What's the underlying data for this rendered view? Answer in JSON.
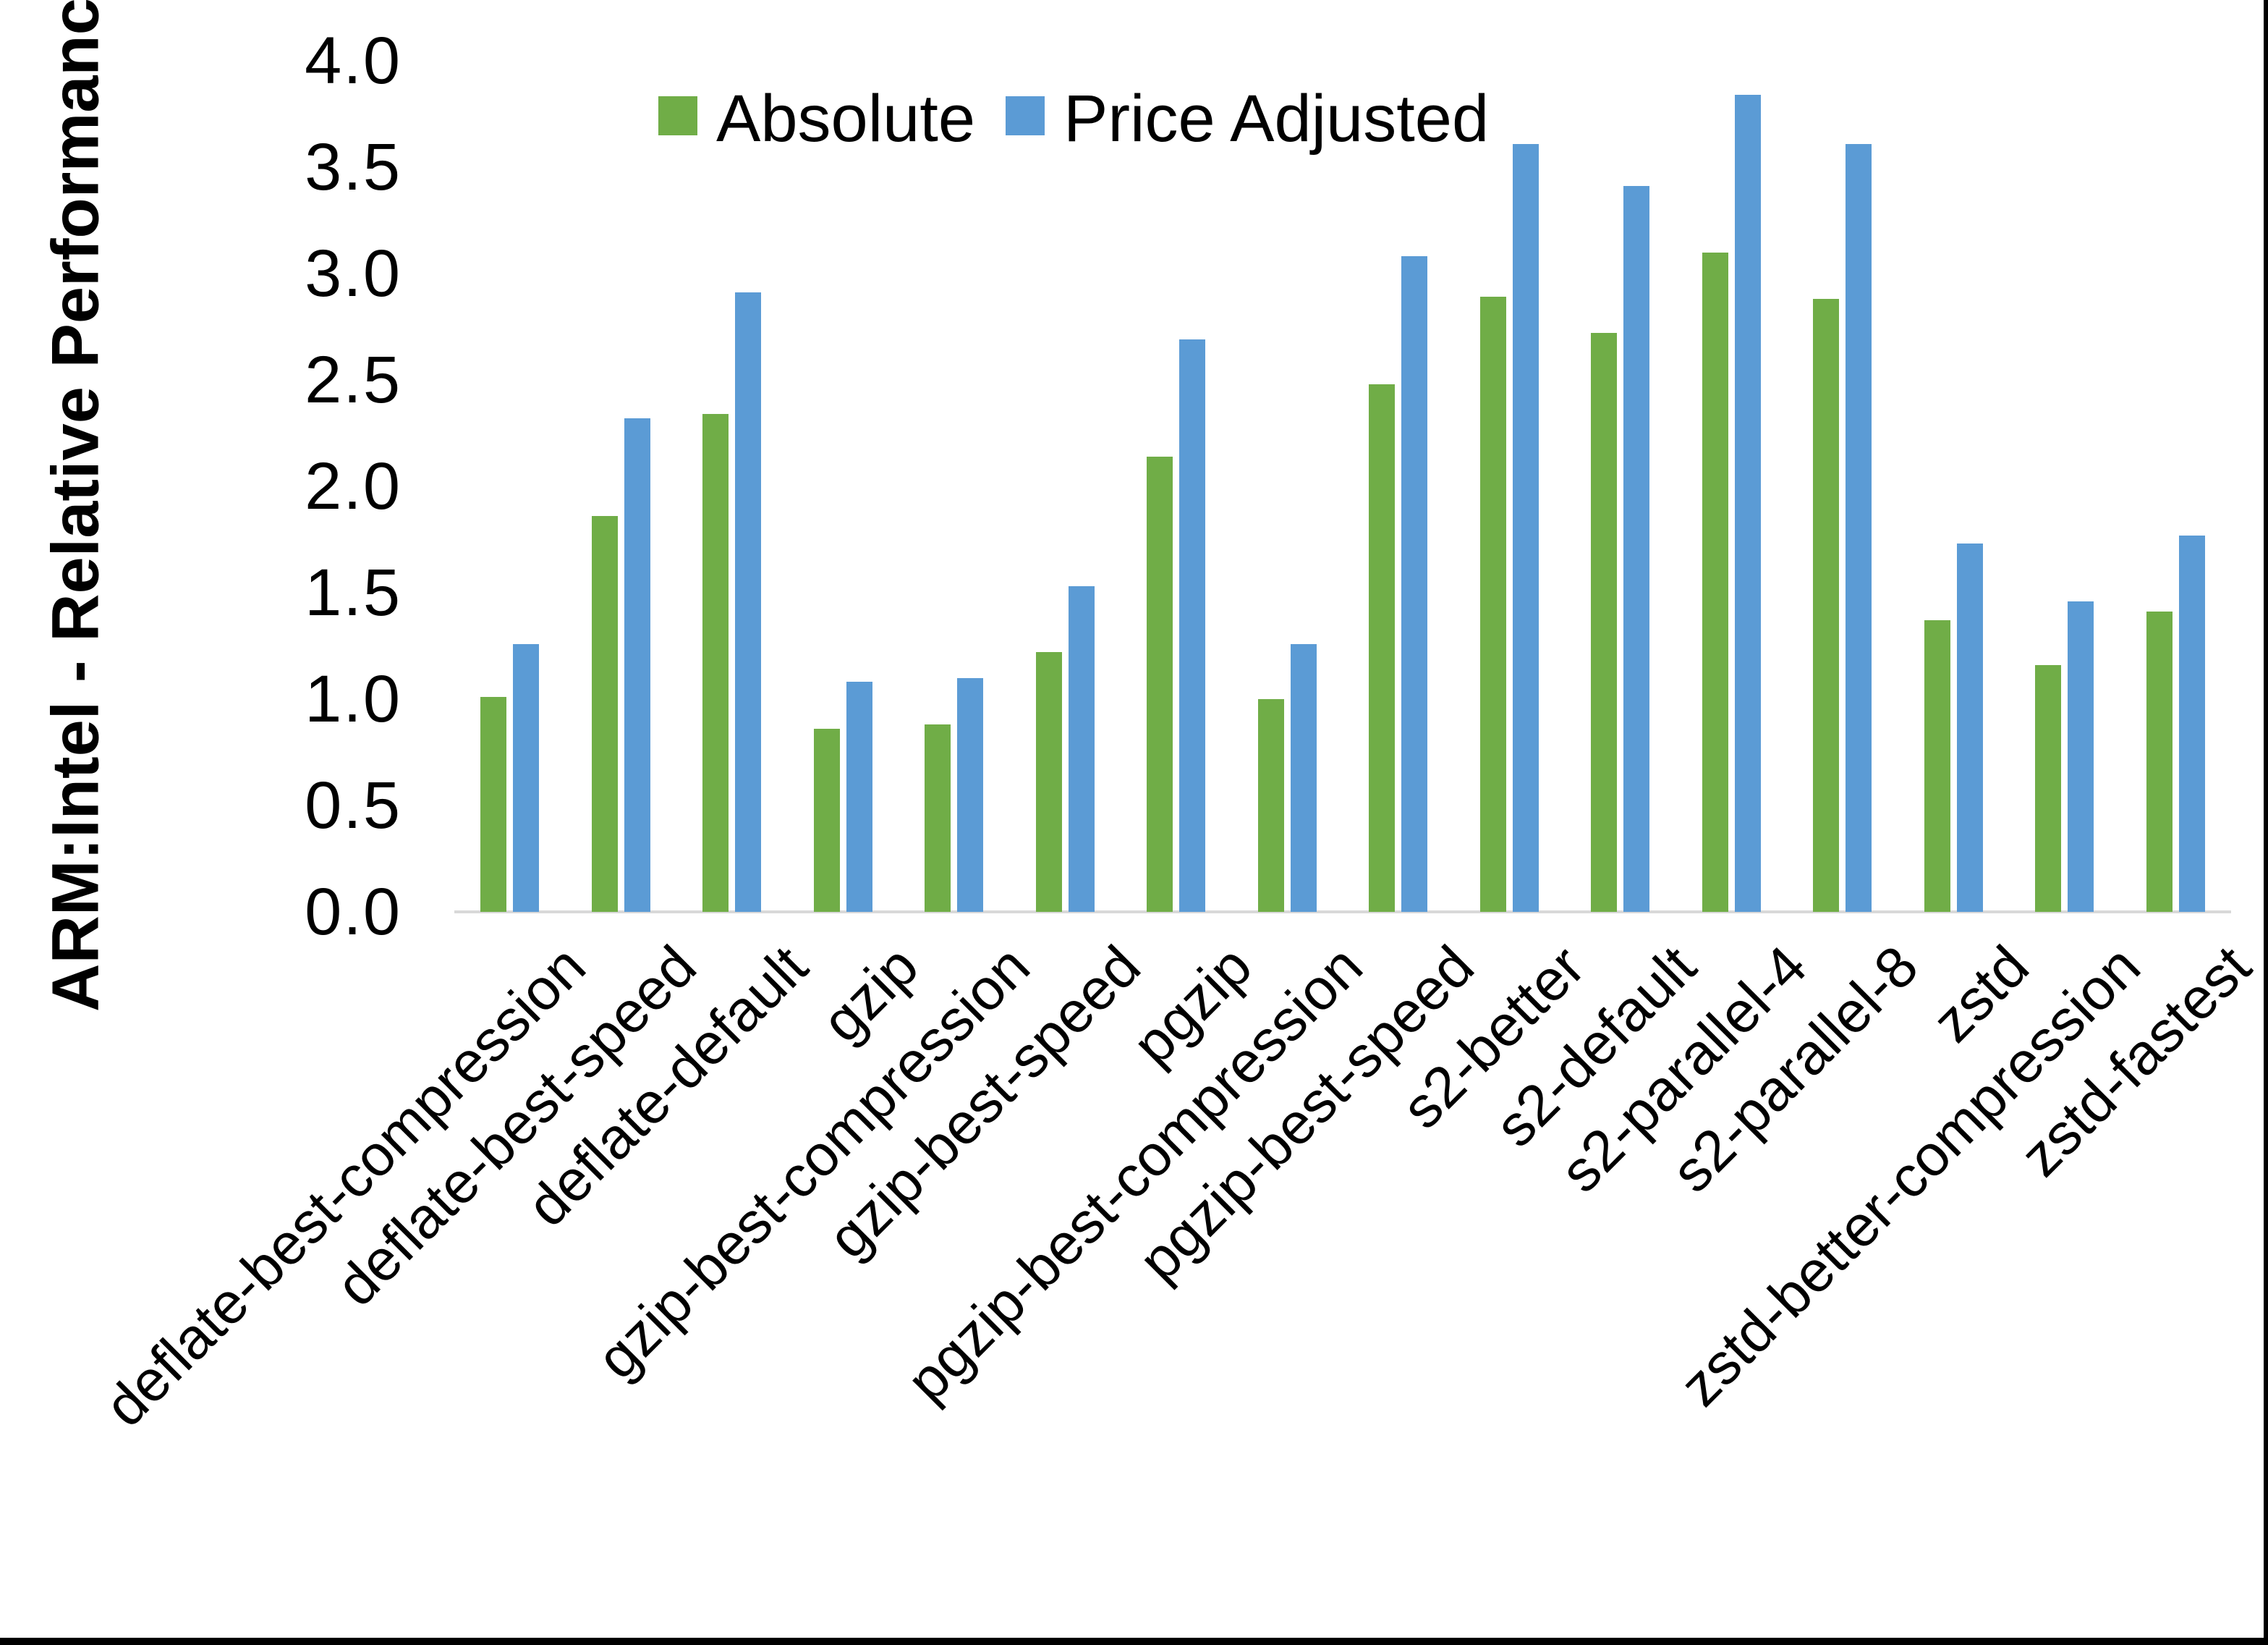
{
  "chart_data": {
    "type": "bar",
    "title": "",
    "xlabel": "",
    "ylabel": "ARM:Intel - Relative Performance",
    "ylim": [
      0.0,
      4.0
    ],
    "ytick_step": 0.5,
    "yticks": [
      "0.0",
      "0.5",
      "1.0",
      "1.5",
      "2.0",
      "2.5",
      "3.0",
      "3.5",
      "4.0"
    ],
    "grid": false,
    "legend_position": "top-center",
    "categories": [
      "deflate-best-compression",
      "deflate-best-speed",
      "deflate-default",
      "gzip",
      "gzip-best-compression",
      "gzip-best-speed",
      "pgzip",
      "pgzip-best-compression",
      "pgzip-best-speed",
      "s2-better",
      "s2-default",
      "s2-parallel-4",
      "s2-parallel-8",
      "zstd",
      "zstd-better-compression",
      "zstd-fastest"
    ],
    "series": [
      {
        "name": "Absolute",
        "color": "#70AD47",
        "values": [
          1.01,
          1.86,
          2.34,
          0.86,
          0.88,
          1.22,
          2.14,
          1.0,
          2.48,
          2.89,
          2.72,
          3.1,
          2.88,
          1.37,
          1.16,
          1.41
        ]
      },
      {
        "name": "Price Adjusted",
        "color": "#5B9BD5",
        "values": [
          1.26,
          2.32,
          2.91,
          1.08,
          1.1,
          1.53,
          2.69,
          1.26,
          3.08,
          3.61,
          3.41,
          3.84,
          3.61,
          1.73,
          1.46,
          1.77
        ]
      }
    ]
  }
}
